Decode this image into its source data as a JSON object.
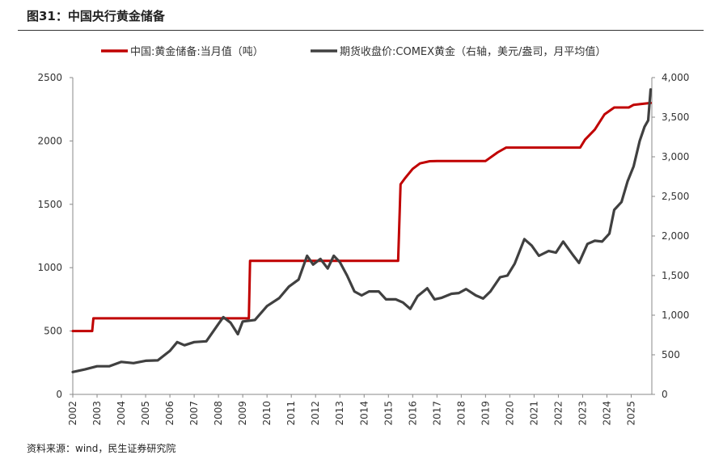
{
  "page": {
    "title": "图31：中国央行黄金储备",
    "source": "资料来源：wind，民生证券研究院"
  },
  "chart_data": {
    "type": "line",
    "title": "图31：中国央行黄金储备",
    "legend_position": "top",
    "grid": false,
    "x_label": "",
    "x_ticks": [
      "2002",
      "2003",
      "2004",
      "2005",
      "2006",
      "2007",
      "2008",
      "2009",
      "2010",
      "2011",
      "2012",
      "2013",
      "2014",
      "2015",
      "2016",
      "2017",
      "2018",
      "2019",
      "2020",
      "2021",
      "2022",
      "2023",
      "2024",
      "2025"
    ],
    "y_left": {
      "label": "",
      "range": [
        0,
        2500
      ],
      "ticks": [
        "0",
        "500",
        "1000",
        "1500",
        "2000",
        "2500"
      ]
    },
    "y_right": {
      "label": "",
      "range": [
        0,
        4000
      ],
      "ticks": [
        "0",
        "500",
        "1,000",
        "1,500",
        "2,000",
        "2,500",
        "3,000",
        "3,500",
        "4,000"
      ]
    },
    "series": [
      {
        "name": "中国:黄金储备:当月值（吨）",
        "axis": "left",
        "color": "#C00000",
        "points": [
          [
            2002.0,
            500
          ],
          [
            2002.8,
            500
          ],
          [
            2002.85,
            600
          ],
          [
            2009.25,
            600
          ],
          [
            2009.3,
            1054
          ],
          [
            2015.4,
            1054
          ],
          [
            2015.5,
            1658
          ],
          [
            2015.7,
            1710
          ],
          [
            2016.0,
            1780
          ],
          [
            2016.3,
            1823
          ],
          [
            2016.7,
            1840
          ],
          [
            2017.0,
            1842
          ],
          [
            2019.0,
            1842
          ],
          [
            2019.5,
            1910
          ],
          [
            2019.85,
            1948
          ],
          [
            2022.9,
            1948
          ],
          [
            2023.1,
            2010
          ],
          [
            2023.5,
            2090
          ],
          [
            2023.9,
            2210
          ],
          [
            2024.3,
            2264
          ],
          [
            2024.9,
            2264
          ],
          [
            2025.1,
            2285
          ],
          [
            2025.8,
            2300
          ]
        ]
      },
      {
        "name": "期货收盘价:COMEX黄金（右轴，美元/盎司，月平均值）",
        "axis": "right",
        "color": "#404040",
        "points": [
          [
            2002.0,
            283
          ],
          [
            2002.5,
            315
          ],
          [
            2003.0,
            355
          ],
          [
            2003.5,
            355
          ],
          [
            2004.0,
            410
          ],
          [
            2004.5,
            395
          ],
          [
            2005.0,
            425
          ],
          [
            2005.5,
            430
          ],
          [
            2006.0,
            550
          ],
          [
            2006.3,
            660
          ],
          [
            2006.6,
            620
          ],
          [
            2007.0,
            660
          ],
          [
            2007.5,
            670
          ],
          [
            2008.0,
            890
          ],
          [
            2008.2,
            975
          ],
          [
            2008.5,
            905
          ],
          [
            2008.8,
            760
          ],
          [
            2009.0,
            920
          ],
          [
            2009.5,
            940
          ],
          [
            2010.0,
            1115
          ],
          [
            2010.5,
            1215
          ],
          [
            2010.9,
            1360
          ],
          [
            2011.3,
            1450
          ],
          [
            2011.65,
            1750
          ],
          [
            2011.9,
            1640
          ],
          [
            2012.2,
            1710
          ],
          [
            2012.5,
            1590
          ],
          [
            2012.75,
            1750
          ],
          [
            2013.0,
            1670
          ],
          [
            2013.3,
            1500
          ],
          [
            2013.6,
            1300
          ],
          [
            2013.9,
            1250
          ],
          [
            2014.2,
            1300
          ],
          [
            2014.6,
            1300
          ],
          [
            2014.9,
            1200
          ],
          [
            2015.3,
            1200
          ],
          [
            2015.6,
            1160
          ],
          [
            2015.9,
            1080
          ],
          [
            2016.2,
            1240
          ],
          [
            2016.6,
            1340
          ],
          [
            2016.9,
            1200
          ],
          [
            2017.2,
            1220
          ],
          [
            2017.6,
            1270
          ],
          [
            2017.9,
            1280
          ],
          [
            2018.2,
            1330
          ],
          [
            2018.6,
            1250
          ],
          [
            2018.9,
            1210
          ],
          [
            2019.2,
            1300
          ],
          [
            2019.6,
            1480
          ],
          [
            2019.9,
            1500
          ],
          [
            2020.2,
            1650
          ],
          [
            2020.6,
            1960
          ],
          [
            2020.9,
            1880
          ],
          [
            2021.2,
            1750
          ],
          [
            2021.6,
            1810
          ],
          [
            2021.9,
            1790
          ],
          [
            2022.2,
            1930
          ],
          [
            2022.6,
            1760
          ],
          [
            2022.85,
            1660
          ],
          [
            2023.2,
            1900
          ],
          [
            2023.5,
            1940
          ],
          [
            2023.8,
            1930
          ],
          [
            2024.1,
            2030
          ],
          [
            2024.3,
            2330
          ],
          [
            2024.6,
            2430
          ],
          [
            2024.85,
            2690
          ],
          [
            2025.1,
            2880
          ],
          [
            2025.35,
            3200
          ],
          [
            2025.55,
            3380
          ],
          [
            2025.7,
            3460
          ],
          [
            2025.8,
            3850
          ]
        ]
      }
    ]
  }
}
